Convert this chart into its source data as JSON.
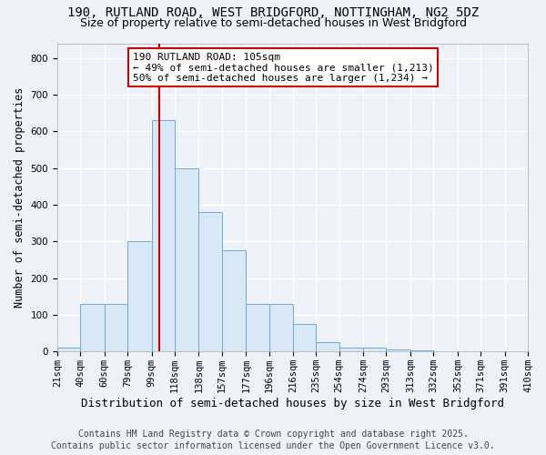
{
  "title1": "190, RUTLAND ROAD, WEST BRIDGFORD, NOTTINGHAM, NG2 5DZ",
  "title2": "Size of property relative to semi-detached houses in West Bridgford",
  "xlabel": "Distribution of semi-detached houses by size in West Bridgford",
  "ylabel": "Number of semi-detached properties",
  "bin_edges": [
    21,
    40,
    60,
    79,
    99,
    118,
    138,
    157,
    177,
    196,
    216,
    235,
    254,
    274,
    293,
    313,
    332,
    352,
    371,
    391,
    410
  ],
  "bin_heights": [
    10,
    130,
    130,
    300,
    630,
    500,
    380,
    275,
    130,
    130,
    75,
    25,
    10,
    10,
    5,
    3,
    0,
    0,
    0,
    0
  ],
  "bar_facecolor": "#d9e8f7",
  "bar_edgecolor": "#6fa8d8",
  "vline_x": 105,
  "vline_color": "#cc0000",
  "annotation_title": "190 RUTLAND ROAD: 105sqm",
  "annotation_line1": "← 49% of semi-detached houses are smaller (1,213)",
  "annotation_line2": "50% of semi-detached houses are larger (1,234) →",
  "annotation_box_edgecolor": "#cc0000",
  "annotation_box_facecolor": "#ffffff",
  "ylim": [
    0,
    840
  ],
  "yticks": [
    0,
    100,
    200,
    300,
    400,
    500,
    600,
    700,
    800
  ],
  "footer1": "Contains HM Land Registry data © Crown copyright and database right 2025.",
  "footer2": "Contains public sector information licensed under the Open Government Licence v3.0.",
  "bg_color": "#eef2f8",
  "grid_color": "#ffffff",
  "title1_fontsize": 10,
  "title2_fontsize": 9,
  "xlabel_fontsize": 9,
  "ylabel_fontsize": 8.5,
  "tick_fontsize": 7.5,
  "annotation_fontsize": 8,
  "footer_fontsize": 7
}
